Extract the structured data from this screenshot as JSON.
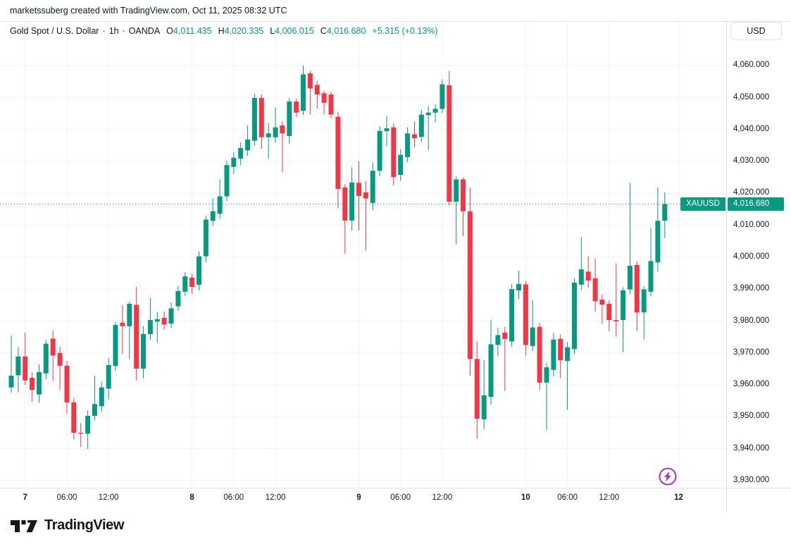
{
  "attribution": {
    "text": "marketssuberg created with TradingView.com, Oct 11, 2025 08:32 UTC"
  },
  "header": {
    "symbol_title": "Gold Spot / U.S. Dollar",
    "interval": "1h",
    "exchange": "OANDA",
    "dot": "·",
    "ohlc": {
      "o_label": "O",
      "o": "4,011.435",
      "h_label": "H",
      "h": "4,020.335",
      "l_label": "L",
      "l": "4,006.015",
      "c_label": "C",
      "c": "4,016.680",
      "change": "+5.315 (+0.13%)"
    }
  },
  "currency_button": {
    "label": "USD"
  },
  "price_label": {
    "symbol": "XAUUSD",
    "price": "4,016.680"
  },
  "footer": {
    "logo_text": "TradingView"
  },
  "colors": {
    "up": "#089981",
    "down": "#F23645",
    "text": "#131722",
    "grid": "#F0F3FA",
    "axis_border": "#E0E3EB",
    "accent_purple": "#A835C2",
    "price_tag_bg": "#089981",
    "background": "#FFFFFF"
  },
  "chart_data": {
    "type": "candlestick",
    "symbol": "XAUUSD",
    "title": "Gold Spot / U.S. Dollar · 1h · OANDA",
    "timeframe": "1h",
    "last_price": 4016.68,
    "ylim": [
      3926,
      4064
    ],
    "grid": true,
    "price_gridlines": [
      4060,
      4050,
      4040,
      4030,
      4020,
      4010,
      4000,
      3990,
      3980,
      3970,
      3960,
      3950,
      3940,
      3930
    ],
    "price_axis_labels": [
      "4,060.000",
      "4,050.000",
      "4,040.000",
      "4,030.000",
      "4,020.000",
      "4,010.000",
      "4,000.000",
      "3,990.000",
      "3,980.000",
      "3,970.000",
      "3,960.000",
      "3,950.000",
      "3,940.000",
      "3,930.000"
    ],
    "time_ticks": [
      {
        "i": 2,
        "label": "7",
        "bold": true
      },
      {
        "i": 8,
        "label": "06:00",
        "bold": false
      },
      {
        "i": 14,
        "label": "12:00",
        "bold": false
      },
      {
        "i": 26,
        "label": "8",
        "bold": true
      },
      {
        "i": 32,
        "label": "06:00",
        "bold": false
      },
      {
        "i": 38,
        "label": "12:00",
        "bold": false
      },
      {
        "i": 50,
        "label": "9",
        "bold": true
      },
      {
        "i": 56,
        "label": "06:00",
        "bold": false
      },
      {
        "i": 62,
        "label": "12:00",
        "bold": false
      },
      {
        "i": 74,
        "label": "10",
        "bold": true
      },
      {
        "i": 80,
        "label": "06:00",
        "bold": false
      },
      {
        "i": 86,
        "label": "12:00",
        "bold": false
      },
      {
        "i": 96,
        "label": "12",
        "bold": true
      }
    ],
    "candles_format": [
      "open",
      "high",
      "low",
      "close"
    ],
    "candles": [
      [
        3959.2,
        3975.5,
        3957.5,
        3962.9
      ],
      [
        3963.0,
        3971.8,
        3957.6,
        3968.9
      ],
      [
        3968.9,
        3976.4,
        3960.0,
        3961.4
      ],
      [
        3962.2,
        3964.0,
        3954.7,
        3958.4
      ],
      [
        3957.0,
        3966.4,
        3954.4,
        3964.0
      ],
      [
        3963.6,
        3974.0,
        3961.8,
        3972.9
      ],
      [
        3974.5,
        3977.0,
        3961.4,
        3969.2
      ],
      [
        3970.0,
        3972.0,
        3958.5,
        3966.0
      ],
      [
        3966.0,
        3967.5,
        3951.0,
        3954.5
      ],
      [
        3954.5,
        3956.0,
        3942.9,
        3945.0
      ],
      [
        3945.0,
        3948.0,
        3940.6,
        3944.7
      ],
      [
        3944.7,
        3952.0,
        3939.9,
        3950.3
      ],
      [
        3950.3,
        3962.9,
        3948.9,
        3954.0
      ],
      [
        3953.3,
        3961.0,
        3951.5,
        3959.2
      ],
      [
        3958.8,
        3968.4,
        3955.4,
        3966.2
      ],
      [
        3965.9,
        3979.6,
        3964.3,
        3978.8
      ],
      [
        3979.5,
        3985.1,
        3969.6,
        3978.4
      ],
      [
        3978.4,
        3986.1,
        3968.1,
        3985.4
      ],
      [
        3985.1,
        3990.7,
        3961.4,
        3965.1
      ],
      [
        3965.1,
        3978.4,
        3962.1,
        3975.9
      ],
      [
        3975.9,
        3987.3,
        3974.0,
        3980.3
      ],
      [
        3979.8,
        3982.9,
        3973.3,
        3980.6
      ],
      [
        3981.0,
        3983.0,
        3977.3,
        3978.9
      ],
      [
        3979.2,
        3985.8,
        3977.9,
        3984.0
      ],
      [
        3984.6,
        3991.0,
        3983.2,
        3989.4
      ],
      [
        3989.2,
        3995.3,
        3987.8,
        3994.0
      ],
      [
        3993.6,
        3995.0,
        3988.4,
        3990.7
      ],
      [
        3991.4,
        4001.8,
        3989.6,
        4000.3
      ],
      [
        4000.3,
        4013.0,
        3998.4,
        4011.8
      ],
      [
        4011.4,
        4018.4,
        4009.8,
        4014.4
      ],
      [
        4013.6,
        4024.4,
        4012.0,
        4019.1
      ],
      [
        4019.1,
        4030.2,
        4017.6,
        4028.9
      ],
      [
        4028.3,
        4033.0,
        4026.1,
        4031.2
      ],
      [
        4030.9,
        4036.0,
        4028.9,
        4034.2
      ],
      [
        4033.5,
        4041.3,
        4031.8,
        4036.9
      ],
      [
        4036.5,
        4051.2,
        4034.9,
        4049.9
      ],
      [
        4049.9,
        4051.0,
        4034.0,
        4037.6
      ],
      [
        4037.6,
        4042.1,
        4030.9,
        4038.8
      ],
      [
        4037.6,
        4047.0,
        4035.9,
        4040.7
      ],
      [
        4041.3,
        4042.6,
        4026.6,
        4038.8
      ],
      [
        4038.0,
        4049.9,
        4035.6,
        4048.8
      ],
      [
        4048.8,
        4049.7,
        4043.9,
        4045.3
      ],
      [
        4045.9,
        4060.1,
        4044.6,
        4057.3
      ],
      [
        4057.6,
        4058.4,
        4044.7,
        4052.9
      ],
      [
        4054.0,
        4055.3,
        4046.6,
        4051.0
      ],
      [
        4051.4,
        4052.2,
        4044.7,
        4048.4
      ],
      [
        4051.0,
        4051.8,
        4043.6,
        4044.7
      ],
      [
        4044.0,
        4045.5,
        4015.4,
        4021.4
      ],
      [
        4021.9,
        4022.9,
        4001.1,
        4011.5
      ],
      [
        4011.5,
        4028.2,
        4008.4,
        4023.4
      ],
      [
        4023.3,
        4030.1,
        4008.4,
        4019.2
      ],
      [
        4020.3,
        4023.9,
        4002.1,
        4018.4
      ],
      [
        4017.0,
        4029.7,
        4014.8,
        4027.1
      ],
      [
        4027.1,
        4041.0,
        4025.4,
        4039.6
      ],
      [
        4039.5,
        4044.3,
        4034.7,
        4040.4
      ],
      [
        4040.7,
        4041.9,
        4022.5,
        4025.1
      ],
      [
        4025.8,
        4033.8,
        4023.9,
        4032.1
      ],
      [
        4031.4,
        4040.7,
        4029.8,
        4038.8
      ],
      [
        4038.5,
        4042.5,
        4034.4,
        4037.3
      ],
      [
        4037.7,
        4046.2,
        4036.1,
        4044.7
      ],
      [
        4044.5,
        4047.3,
        4033.6,
        4045.3
      ],
      [
        4045.3,
        4048.0,
        4042.3,
        4046.5
      ],
      [
        4046.5,
        4055.8,
        4045.2,
        4054.2
      ],
      [
        4053.9,
        4058.4,
        4016.2,
        4017.4
      ],
      [
        4017.4,
        4025.4,
        4004.0,
        4024.4
      ],
      [
        4024.4,
        4025.0,
        4006.6,
        4014.4
      ],
      [
        4014.4,
        4021.8,
        3962.9,
        3968.1
      ],
      [
        3968.1,
        3973.6,
        3943.2,
        3949.4
      ],
      [
        3949.2,
        3967.7,
        3946.1,
        3956.7
      ],
      [
        3956.2,
        3980.4,
        3953.8,
        3972.7
      ],
      [
        3972.5,
        3977.9,
        3968.9,
        3975.6
      ],
      [
        3976.4,
        3978.2,
        3958.1,
        3974.4
      ],
      [
        3973.6,
        3991.6,
        3971.9,
        3990.0
      ],
      [
        3989.6,
        3995.8,
        3986.9,
        3991.6
      ],
      [
        3991.5,
        3992.6,
        3969.2,
        3972.5
      ],
      [
        3972.2,
        3986.6,
        3970.6,
        3978.0
      ],
      [
        3978.2,
        3979.4,
        3958.4,
        3960.7
      ],
      [
        3960.7,
        3966.9,
        3945.9,
        3965.5
      ],
      [
        3964.7,
        3976.3,
        3962.6,
        3974.2
      ],
      [
        3974.4,
        3975.8,
        3962.1,
        3967.7
      ],
      [
        3967.5,
        3973.4,
        3952.2,
        3971.8
      ],
      [
        3971.2,
        3993.4,
        3969.7,
        3992.0
      ],
      [
        3991.4,
        4006.4,
        3989.7,
        3996.2
      ],
      [
        3995.5,
        4000.3,
        3990.4,
        3992.7
      ],
      [
        3993.4,
        3999.6,
        3982.9,
        3986.2
      ],
      [
        3986.7,
        3988.3,
        3979.2,
        3985.1
      ],
      [
        3985.4,
        3986.5,
        3976.8,
        3980.3
      ],
      [
        3980.3,
        3998.1,
        3975.1,
        3979.9
      ],
      [
        3980.3,
        3990.6,
        3970.3,
        3989.6
      ],
      [
        3989.9,
        4023.3,
        3988.4,
        3997.3
      ],
      [
        3997.6,
        3998.7,
        3976.8,
        3982.7
      ],
      [
        3982.7,
        3990.9,
        3974.3,
        3989.9
      ],
      [
        3989.2,
        4009.2,
        3987.7,
        3998.8
      ],
      [
        3998.4,
        4021.9,
        3995.5,
        4011.4
      ],
      [
        4011.435,
        4020.335,
        4006.015,
        4016.68
      ]
    ]
  }
}
